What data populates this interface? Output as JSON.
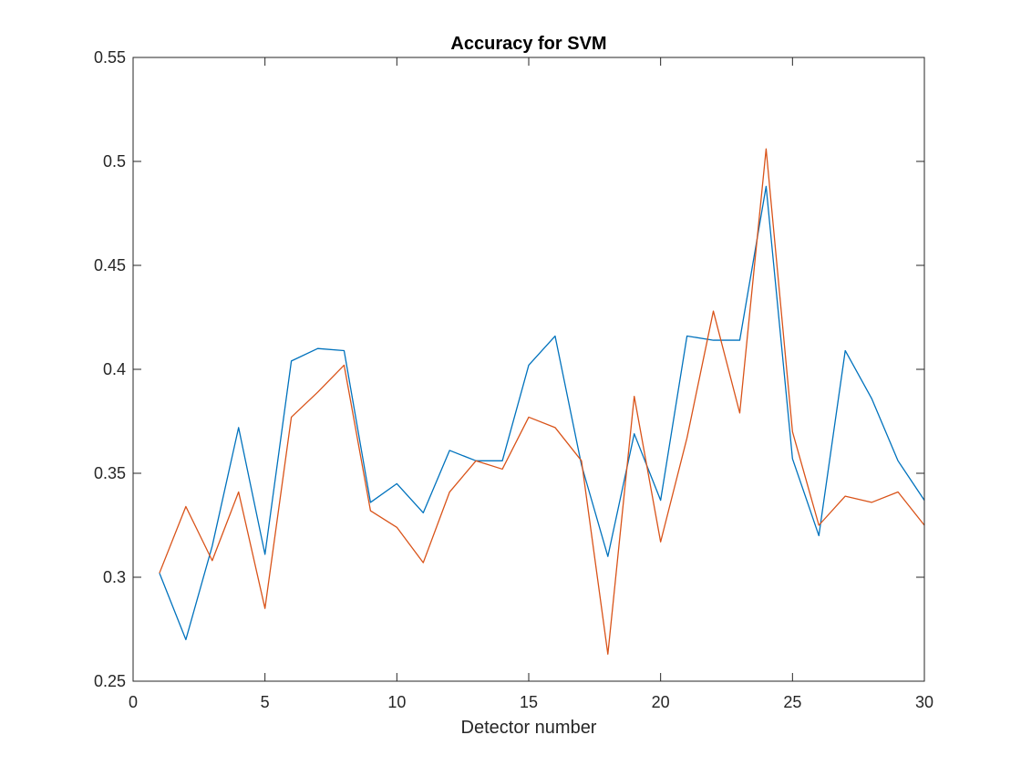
{
  "chart_data": {
    "type": "line",
    "title": "Accuracy for SVM",
    "xlabel": "Detector number",
    "ylabel": "",
    "xlim": [
      0,
      30
    ],
    "ylim": [
      0.25,
      0.55
    ],
    "xticks": [
      0,
      5,
      10,
      15,
      20,
      25,
      30
    ],
    "yticks": [
      0.25,
      0.3,
      0.35,
      0.4,
      0.45,
      0.5,
      0.55
    ],
    "xtick_labels": [
      "0",
      "5",
      "10",
      "15",
      "20",
      "25",
      "30"
    ],
    "ytick_labels": [
      "0.25",
      "0.3",
      "0.35",
      "0.4",
      "0.45",
      "0.5",
      "0.55"
    ],
    "grid": false,
    "legend": "none",
    "x": [
      1,
      2,
      3,
      4,
      5,
      6,
      7,
      8,
      9,
      10,
      11,
      12,
      13,
      14,
      15,
      16,
      17,
      18,
      19,
      20,
      21,
      22,
      23,
      24,
      25,
      26,
      27,
      28,
      29,
      30
    ],
    "series": [
      {
        "color": "#0072BD",
        "values": [
          0.302,
          0.27,
          0.315,
          0.372,
          0.311,
          0.404,
          0.41,
          0.409,
          0.336,
          0.345,
          0.331,
          0.361,
          0.356,
          0.356,
          0.402,
          0.416,
          0.354,
          0.31,
          0.369,
          0.337,
          0.416,
          0.414,
          0.414,
          0.488,
          0.357,
          0.32,
          0.409,
          0.386,
          0.356,
          0.337
        ]
      },
      {
        "color": "#D95319",
        "values": [
          0.302,
          0.334,
          0.308,
          0.341,
          0.285,
          0.377,
          0.389,
          0.402,
          0.332,
          0.324,
          0.307,
          0.341,
          0.356,
          0.352,
          0.377,
          0.372,
          0.356,
          0.263,
          0.387,
          0.317,
          0.367,
          0.428,
          0.379,
          0.506,
          0.37,
          0.325,
          0.339,
          0.336,
          0.341,
          0.325
        ]
      }
    ]
  }
}
